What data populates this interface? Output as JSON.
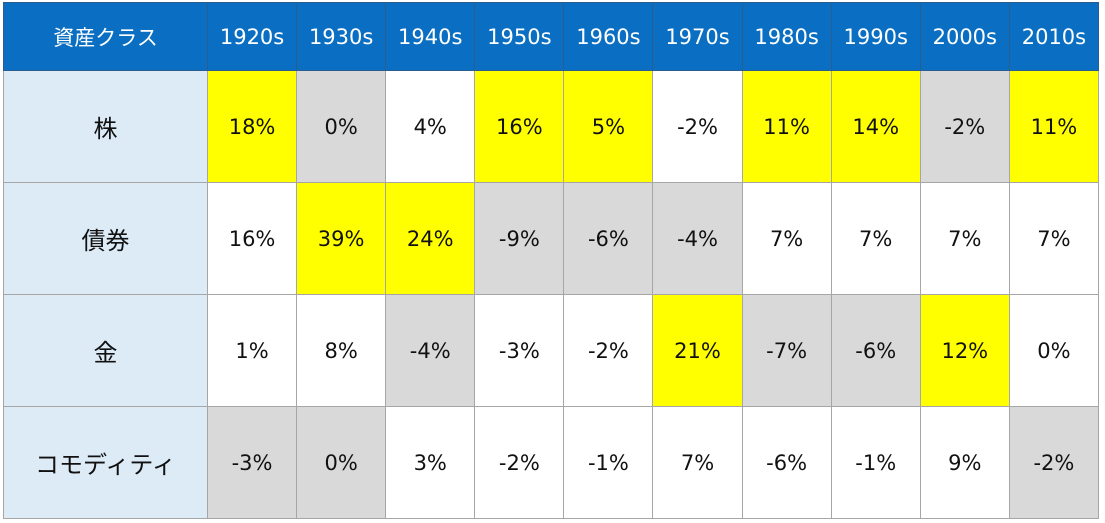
{
  "table": {
    "header": [
      "資産クラス",
      "1920s",
      "1930s",
      "1940s",
      "1950s",
      "1960s",
      "1970s",
      "1980s",
      "1990s",
      "2000s",
      "2010s"
    ],
    "rows": [
      [
        "株",
        "18%",
        "0%",
        "4%",
        "16%",
        "5%",
        "-2%",
        "11%",
        "14%",
        "-2%",
        "11%"
      ],
      [
        "債券",
        "16%",
        "39%",
        "24%",
        "-9%",
        "-6%",
        "-4%",
        "7%",
        "7%",
        "7%",
        "7%"
      ],
      [
        "金",
        "1%",
        "8%",
        "-4%",
        "-3%",
        "-2%",
        "21%",
        "-7%",
        "-6%",
        "12%",
        "0%"
      ],
      [
        "コモディティ",
        "-3%",
        "0%",
        "3%",
        "-2%",
        "-1%",
        "7%",
        "-6%",
        "-1%",
        "9%",
        "-2%"
      ]
    ],
    "cell_colors": [
      [
        "#ffff00",
        "#d9d9d9",
        "#ffffff",
        "#ffff00",
        "#ffff00",
        "#ffffff",
        "#ffff00",
        "#ffff00",
        "#d9d9d9",
        "#ffff00"
      ],
      [
        "#ffffff",
        "#ffff00",
        "#ffff00",
        "#d9d9d9",
        "#d9d9d9",
        "#d9d9d9",
        "#ffffff",
        "#ffffff",
        "#ffffff",
        "#ffffff"
      ],
      [
        "#ffffff",
        "#ffffff",
        "#d9d9d9",
        "#ffffff",
        "#ffffff",
        "#ffff00",
        "#d9d9d9",
        "#d9d9d9",
        "#ffff00",
        "#ffffff"
      ],
      [
        "#d9d9d9",
        "#d9d9d9",
        "#ffffff",
        "#ffffff",
        "#ffffff",
        "#ffffff",
        "#ffffff",
        "#ffffff",
        "#ffffff",
        "#d9d9d9"
      ]
    ]
  }
}
